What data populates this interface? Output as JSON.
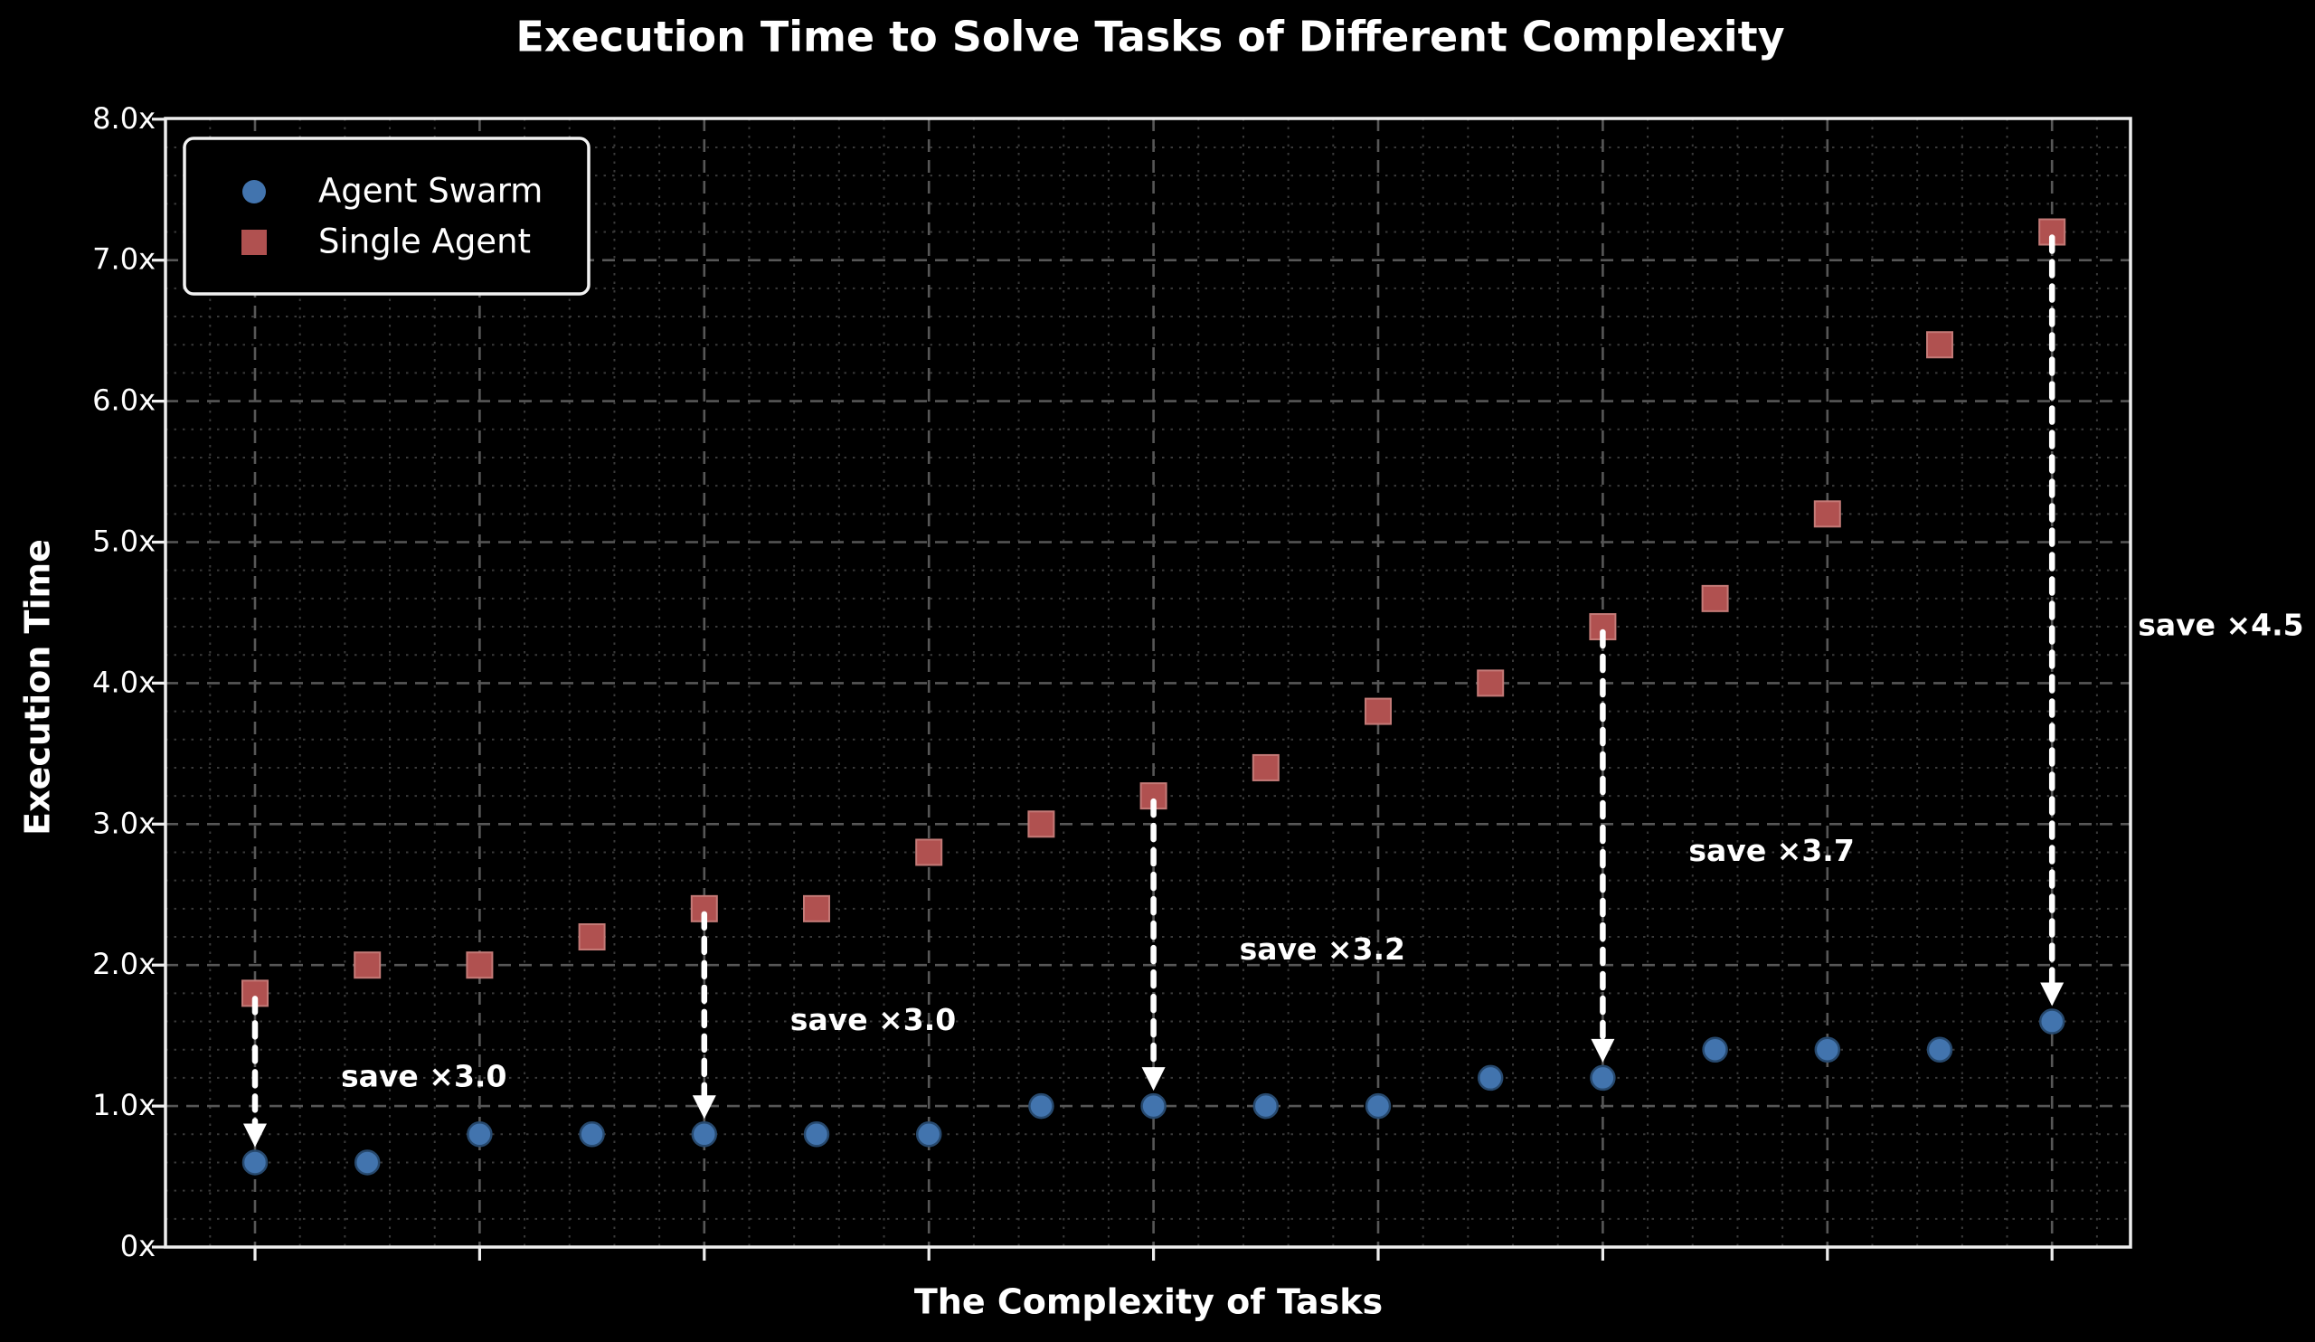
{
  "figure": {
    "title": "Execution Time to Solve Tasks of Different Complexity"
  },
  "chart_data": {
    "type": "scatter",
    "title": "Execution Time to Solve Tasks of Different Complexity",
    "xlabel": "The Complexity of Tasks",
    "ylabel": "Execution Time",
    "num_points": 17,
    "x": [
      1,
      2,
      3,
      4,
      5,
      6,
      7,
      8,
      9,
      10,
      11,
      12,
      13,
      14,
      15,
      16,
      17
    ],
    "series": [
      {
        "name": "Agent Swarm",
        "marker": "circle",
        "values": [
          0.6,
          0.6,
          0.8,
          0.8,
          0.8,
          0.8,
          0.8,
          1.0,
          1.0,
          1.0,
          1.0,
          1.2,
          1.2,
          1.4,
          1.4,
          1.4,
          1.6
        ]
      },
      {
        "name": "Single Agent",
        "marker": "square",
        "values": [
          1.8,
          2.0,
          2.0,
          2.2,
          2.4,
          2.4,
          2.8,
          3.0,
          3.2,
          3.4,
          3.8,
          4.0,
          4.4,
          4.6,
          5.2,
          6.4,
          7.2
        ]
      }
    ],
    "annotations": [
      {
        "label": "save ×3.0",
        "point_index": 0,
        "from_value": 1.8,
        "to_value": 0.6
      },
      {
        "label": "save ×3.0",
        "point_index": 4,
        "from_value": 2.4,
        "to_value": 0.8
      },
      {
        "label": "save ×3.2",
        "point_index": 8,
        "from_value": 3.2,
        "to_value": 1.0
      },
      {
        "label": "save ×3.7",
        "point_index": 12,
        "from_value": 4.4,
        "to_value": 1.2
      },
      {
        "label": "save ×4.5",
        "point_index": 16,
        "from_value": 7.2,
        "to_value": 1.6
      }
    ],
    "y_ticks": [
      "0x",
      "1.0x",
      "2.0x",
      "3.0x",
      "4.0x",
      "5.0x",
      "6.0x",
      "7.0x",
      "8.0x"
    ],
    "ylim": [
      0,
      8.07
    ],
    "grid": "on",
    "legend_position": "upper left"
  },
  "style": {
    "background": "#000000",
    "text_color": "#ffffff",
    "agent_swarm_color": "#4274ae",
    "agent_swarm_edge": "#27496e",
    "single_agent_color": "#b05150",
    "single_agent_edge": "#c47a77",
    "grid_major_color": "#575757",
    "grid_minor_color": "#3a3a3a",
    "spine_color": "#eeeeee",
    "arrow_color": "#ffffff",
    "legend_border_color": "#f2f2f2"
  }
}
